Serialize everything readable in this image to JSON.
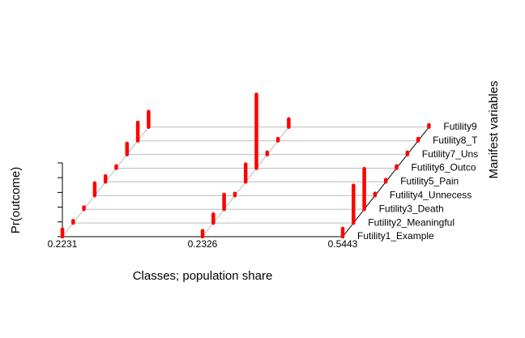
{
  "chart_data": {
    "type": "bar3d",
    "x_label": "Classes; population share",
    "y_label": "Pr(outcome)",
    "z_label": "Manifest variables",
    "categories": [
      "0.2231",
      "0.2326",
      "0.5443"
    ],
    "color": "#ff0000",
    "ylim": [
      0,
      1
    ],
    "yticks": [
      0,
      0.2,
      0.4,
      0.6,
      0.8,
      1
    ],
    "series": [
      {
        "name": "Futility1_Example",
        "values": [
          0.1,
          0.08,
          0.11
        ]
      },
      {
        "name": "Futility2_Meaningful",
        "values": [
          0.03,
          0.12,
          0.51
        ]
      },
      {
        "name": "Futility3_Death",
        "values": [
          0.03,
          0.2,
          0.55
        ]
      },
      {
        "name": "Futility4_Unnecess",
        "values": [
          0.17,
          0.03,
          0.03
        ]
      },
      {
        "name": "Futility5_Pain",
        "values": [
          0.08,
          0.24,
          0.03
        ]
      },
      {
        "name": "Futility6_Outco",
        "values": [
          0.03,
          1.0,
          0.03
        ]
      },
      {
        "name": "Futility7_Uns",
        "values": [
          0.15,
          0.03,
          0.03
        ]
      },
      {
        "name": "Futility8_T",
        "values": [
          0.25,
          0.03,
          0.03
        ]
      },
      {
        "name": "Futility9",
        "values": [
          0.21,
          0.11,
          0.03
        ]
      }
    ]
  }
}
